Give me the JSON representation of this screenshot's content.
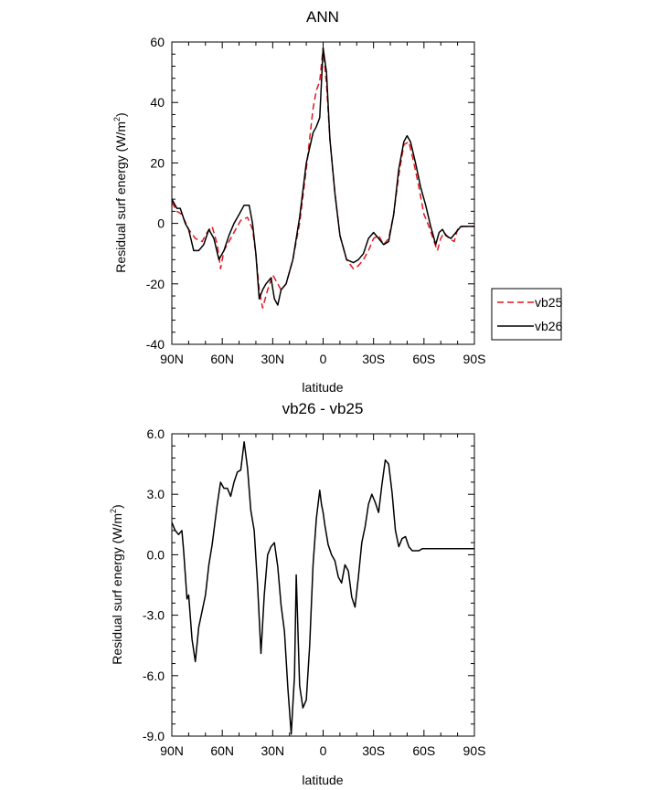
{
  "chart_data": [
    {
      "type": "line",
      "title": "ANN",
      "xlabel": "latitude",
      "ylabel": "Residual surf energy (W/m²)",
      "ylabel_main": "Residual surf energy (W/m",
      "ylabel_sup": "2",
      "ylabel_close": ")",
      "xlim": [
        90,
        -90
      ],
      "ylim": [
        -40,
        60
      ],
      "x_ticks": [
        90,
        60,
        30,
        0,
        -30,
        -60,
        -90
      ],
      "x_tick_labels": [
        "90N",
        "60N",
        "30N",
        "0",
        "30S",
        "60S",
        "90S"
      ],
      "y_ticks": [
        -40,
        -20,
        0,
        20,
        40,
        60
      ],
      "y_tick_labels": [
        "-40",
        "-20",
        "0",
        "20",
        "40",
        "60"
      ],
      "legend": {
        "placement": "outside-right",
        "entries": [
          "vb25",
          "vb26"
        ]
      },
      "series": [
        {
          "name": "vb25",
          "color": "#e0191f",
          "dash": "dashed",
          "x": [
            90,
            87,
            84,
            80,
            76,
            72,
            69,
            66,
            63,
            61,
            59,
            56,
            53,
            49,
            45,
            42,
            40,
            38,
            36,
            33,
            30,
            27,
            25,
            22,
            18,
            14,
            10,
            6,
            4,
            2,
            0,
            -2,
            -4,
            -7,
            -10,
            -14,
            -18,
            -21,
            -24,
            -27,
            -30,
            -33,
            -36,
            -39,
            -42,
            -45,
            -48,
            -51,
            -54,
            -57,
            -60,
            -63,
            -66,
            -68,
            -70,
            -72,
            -75,
            -78,
            -80,
            -83,
            -86,
            -90
          ],
          "y": [
            7,
            4,
            3,
            -2,
            -5,
            -6,
            -3,
            -1,
            -7,
            -15,
            -9,
            -6,
            -3,
            1,
            2,
            -2,
            -10,
            -22,
            -28,
            -22,
            -17,
            -20,
            -22,
            -20,
            -12,
            0,
            18,
            38,
            44,
            47,
            58,
            46,
            28,
            10,
            -4,
            -12,
            -15,
            -14,
            -12,
            -9,
            -5,
            -4,
            -7,
            -5,
            3,
            16,
            26,
            27,
            20,
            12,
            3,
            -1,
            -6,
            -9,
            -5,
            -3,
            -5,
            -6,
            -2,
            -1,
            -1,
            -1
          ]
        },
        {
          "name": "vb26",
          "color": "#000000",
          "dash": "solid",
          "x": [
            90,
            87,
            85,
            82,
            80,
            77,
            74,
            71,
            68,
            65,
            62,
            59,
            56,
            53,
            50,
            47,
            44,
            42,
            40,
            38,
            36,
            34,
            31,
            29,
            27,
            25,
            22,
            18,
            14,
            10,
            6,
            4,
            2,
            0,
            -2,
            -4,
            -7,
            -10,
            -14,
            -18,
            -21,
            -24,
            -27,
            -30,
            -33,
            -36,
            -39,
            -42,
            -45,
            -48,
            -50,
            -52,
            -55,
            -58,
            -61,
            -64,
            -67,
            -69,
            -71,
            -73,
            -76,
            -79,
            -82,
            -86,
            -90
          ],
          "y": [
            8,
            5,
            5,
            0,
            -2,
            -9,
            -9,
            -7,
            -2,
            -5,
            -12,
            -9,
            -4,
            0,
            3,
            6,
            6,
            0,
            -10,
            -25,
            -22,
            -20,
            -18,
            -25,
            -27,
            -22,
            -20,
            -12,
            2,
            20,
            30,
            32,
            35,
            58,
            50,
            28,
            10,
            -4,
            -12,
            -13,
            -12,
            -10,
            -5,
            -3,
            -5,
            -7,
            -6,
            3,
            18,
            27,
            29,
            27,
            20,
            12,
            6,
            -1,
            -7,
            -3,
            -2,
            -4,
            -5,
            -3,
            -1,
            -1,
            -1
          ]
        }
      ]
    },
    {
      "type": "line",
      "title": "vb26 - vb25",
      "xlabel": "latitude",
      "ylabel": "Residual surf energy (W/m²)",
      "ylabel_main": "Residual surf energy (W/m",
      "ylabel_sup": "2",
      "ylabel_close": ")",
      "xlim": [
        90,
        -90
      ],
      "ylim": [
        -9,
        6
      ],
      "x_ticks": [
        90,
        60,
        30,
        0,
        -30,
        -60,
        -90
      ],
      "x_tick_labels": [
        "90N",
        "60N",
        "30N",
        "0",
        "30S",
        "60S",
        "90S"
      ],
      "y_ticks": [
        -9,
        -6,
        -3,
        0,
        3,
        6
      ],
      "y_tick_labels": [
        "-9.0",
        "-6.0",
        "-3.0",
        "0.0",
        "3.0",
        "6.0"
      ],
      "series": [
        {
          "name": "vb26 - vb25",
          "color": "#000000",
          "dash": "solid",
          "x": [
            90,
            88,
            86,
            84,
            83,
            81,
            80,
            78,
            76,
            74,
            72,
            70,
            68,
            66,
            63,
            61,
            59,
            57,
            55,
            53,
            51,
            49,
            47,
            45,
            43,
            41,
            39,
            37,
            35,
            33,
            31,
            29,
            27,
            25,
            23,
            21,
            19,
            17,
            16,
            14,
            12,
            10,
            8,
            6,
            4,
            2,
            1,
            0,
            -1,
            -3,
            -5,
            -7,
            -9,
            -11,
            -13,
            -15,
            -17,
            -19,
            -21,
            -23,
            -25,
            -27,
            -29,
            -31,
            -33,
            -35,
            -37,
            -39,
            -41,
            -43,
            -45,
            -47,
            -49,
            -51,
            -53,
            -55,
            -57,
            -59,
            -61,
            -63,
            -65,
            -67,
            -69,
            -71,
            -73,
            -75,
            -77,
            -79,
            -81,
            -83,
            -85,
            -87,
            -90
          ],
          "y": [
            1.6,
            1.2,
            1.0,
            1.2,
            0.2,
            -2.2,
            -2.0,
            -4.2,
            -5.3,
            -3.6,
            -2.8,
            -2.0,
            -0.5,
            0.5,
            2.5,
            3.6,
            3.3,
            3.3,
            2.9,
            3.6,
            4.1,
            4.2,
            5.6,
            4.3,
            2.2,
            1.2,
            -1.5,
            -4.9,
            -2.0,
            0.0,
            0.4,
            0.6,
            -0.6,
            -2.5,
            -3.8,
            -6.6,
            -8.9,
            -6.0,
            -1.0,
            -6.5,
            -7.6,
            -7.2,
            -4.5,
            -0.5,
            1.8,
            3.2,
            2.5,
            2.1,
            1.5,
            0.5,
            0.0,
            -0.3,
            -1.1,
            -1.4,
            -0.5,
            -0.8,
            -2.1,
            -2.6,
            -1.1,
            0.6,
            1.4,
            2.5,
            3.0,
            2.6,
            2.1,
            3.5,
            4.7,
            4.5,
            3.1,
            1.2,
            0.4,
            0.8,
            0.9,
            0.4,
            0.2,
            0.2,
            0.2,
            0.3,
            0.3,
            0.3,
            0.3,
            0.3,
            0.3,
            0.3,
            0.3,
            0.3,
            0.3,
            0.3,
            0.3,
            0.3,
            0.3,
            0.3,
            0.3
          ]
        }
      ]
    }
  ]
}
